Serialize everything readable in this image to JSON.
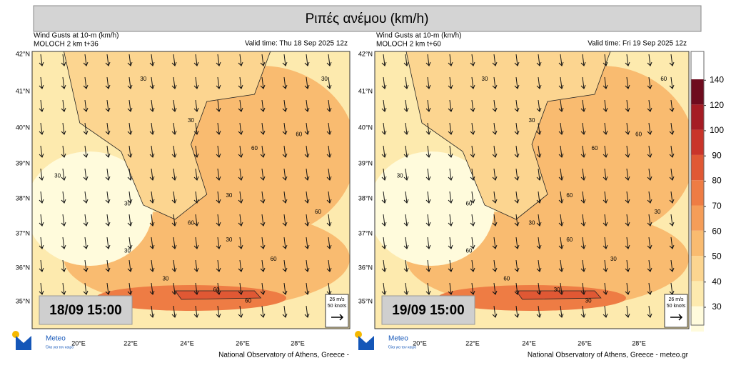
{
  "header": {
    "title": "Ριπές ανέμου (km/h)"
  },
  "panels": [
    {
      "line1": "Wind Gusts at 10-m (km/h)",
      "line2": "MOLOCH 2 km t+36",
      "valid": "Valid time: Thu 18 Sep 2025 12z",
      "date": "18/09 15:00",
      "lat_labels": [
        "42°N",
        "41°N",
        "40°N",
        "39°N",
        "38°N",
        "37°N",
        "36°N",
        "35°N"
      ],
      "lon_labels": [
        "20°E",
        "22°E",
        "24°E",
        "26°E",
        "28°E"
      ],
      "ref_speed": "26 m/s",
      "ref_knots": "50 knots",
      "contours": [
        "30",
        "30",
        "30",
        "30",
        "30",
        "60",
        "60",
        "60",
        "60",
        "30",
        "30",
        "60",
        "60",
        "30",
        "30",
        "60"
      ],
      "footer": "National Observatory of Athens, Greece -"
    },
    {
      "line1": "Wind Gusts at 10-m (km/h)",
      "line2": "MOLOCH 2 km t+60",
      "valid": "Valid time: Fri 19 Sep 2025 12z",
      "date": "19/09 15:00",
      "lat_labels": [
        "42°N",
        "41°N",
        "40°N",
        "39°N",
        "38°N",
        "37°N",
        "36°N",
        "35°N"
      ],
      "lon_labels": [
        "20°E",
        "22°E",
        "24°E",
        "26°E",
        "28°E"
      ],
      "ref_speed": "26 m/s",
      "ref_knots": "50 knots",
      "contours": [
        "30",
        "30",
        "30",
        "60",
        "60",
        "60",
        "60",
        "30",
        "30",
        "60",
        "60",
        "30",
        "30",
        "60",
        "60",
        "30"
      ],
      "footer": "National Observatory of Athens, Greece - meteo.gr"
    }
  ],
  "logo": {
    "name": "Meteo",
    "tagline": "Όλα για τον καιρό"
  },
  "colorbar": {
    "ticks": [
      30,
      40,
      50,
      60,
      70,
      80,
      90,
      100,
      120,
      140
    ],
    "colors": [
      "#fffbdc",
      "#fdeaae",
      "#fcd590",
      "#f9bb70",
      "#f59d58",
      "#ee7c44",
      "#e05834",
      "#c9342a",
      "#a51c24",
      "#6e0b1e"
    ]
  }
}
